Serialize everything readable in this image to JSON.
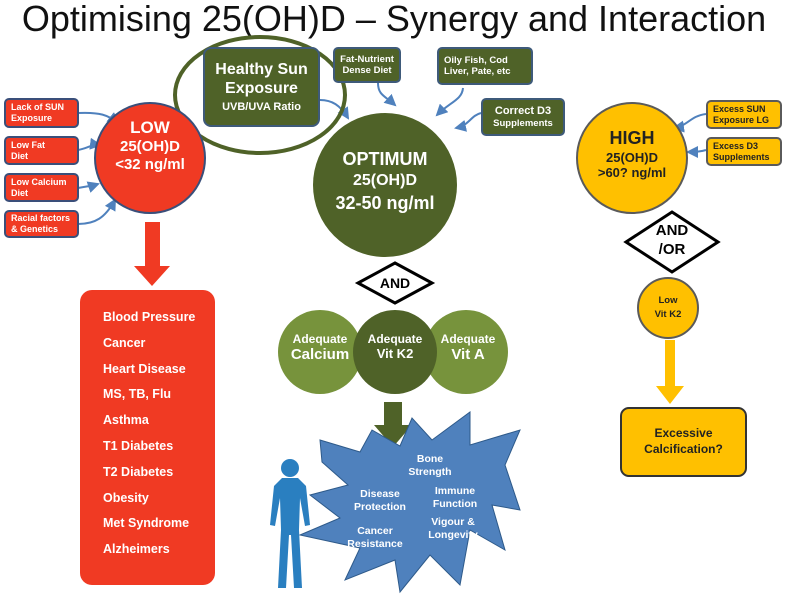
{
  "title": "Optimising 25(OH)D – Synergy and Interaction",
  "colors": {
    "red": "#f03a23",
    "green": "#4f6228",
    "light_green": "#77933c",
    "yellow": "#ffc000",
    "blue": "#4f81bd"
  },
  "sun": {
    "line1": "Healthy Sun",
    "line2": "Exposure",
    "line3": "UVB/UVA Ratio"
  },
  "inputs_optimum": [
    {
      "l1": "Fat-Nutrient",
      "l2": "Dense Diet"
    },
    {
      "l1": "Oily Fish, Cod",
      "l2": "Liver, Pate, etc"
    },
    {
      "l1": "Correct D3",
      "l2": "Supplements"
    }
  ],
  "low": {
    "l1": "LOW",
    "l2": "25(OH)D",
    "l3": "<32 ng/ml",
    "causes": [
      {
        "l1": "Lack of SUN",
        "l2": "Exposure"
      },
      {
        "l1": "Low Fat",
        "l2": "Diet"
      },
      {
        "l1": "Low Calcium",
        "l2": "Diet"
      },
      {
        "l1": "Racial factors",
        "l2": "& Genetics"
      }
    ],
    "outcomes": [
      "Blood Pressure",
      "Cancer",
      "Heart Disease",
      "MS, TB, Flu",
      "Asthma",
      "T1 Diabetes",
      "T2 Diabetes",
      "Obesity",
      "Met Syndrome",
      "Alzheimers"
    ]
  },
  "optimum": {
    "l1": "OPTIMUM",
    "l2": "25(OH)D",
    "l3": "32-50 ng/ml",
    "and": "AND",
    "cofactors": [
      {
        "l1": "Adequate",
        "l2": "Calcium"
      },
      {
        "l1": "Adequate",
        "l2": "Vit K2"
      },
      {
        "l1": "Adequate",
        "l2": "Vit A"
      }
    ],
    "benefits": [
      {
        "l1": "Bone",
        "l2": "Strength"
      },
      {
        "l1": "Disease",
        "l2": "Protection"
      },
      {
        "l1": "Immune",
        "l2": "Function"
      },
      {
        "l1": "Cancer",
        "l2": "Resistance"
      },
      {
        "l1": "Vigour &",
        "l2": "Longevity"
      }
    ]
  },
  "high": {
    "l1": "HIGH",
    "l2": "25(OH)D",
    "l3": ">60? ng/ml",
    "causes": [
      {
        "l1": "Excess SUN",
        "l2": "Exposure LG"
      },
      {
        "l1": "Excess D3",
        "l2": "Supplements"
      }
    ],
    "andor1": "AND",
    "andor2": "/OR",
    "k2_1": "Low",
    "k2_2": "Vit K2",
    "result1": "Excessive",
    "result2": "Calcification?"
  }
}
